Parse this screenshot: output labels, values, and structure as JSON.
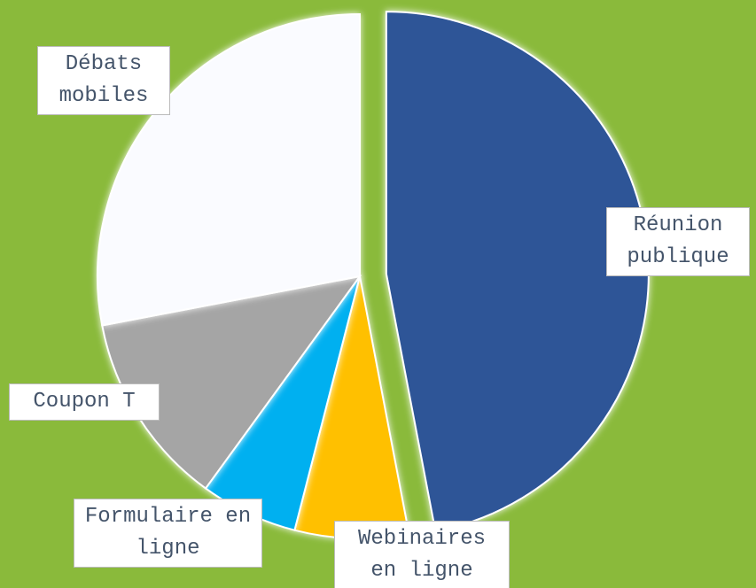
{
  "chart_data": {
    "type": "pie",
    "categories": [
      "Réunion publique",
      "Webinaires en ligne",
      "Formulaire en ligne",
      "Coupon T",
      "Débats mobiles"
    ],
    "values": [
      47,
      7,
      6,
      12,
      28
    ],
    "colors": [
      "#2f5597",
      "#ffc000",
      "#00b0f0",
      "#a5a5a5",
      "#fafbff"
    ],
    "background": "#8aba3b",
    "exploded": [
      0
    ]
  }
}
